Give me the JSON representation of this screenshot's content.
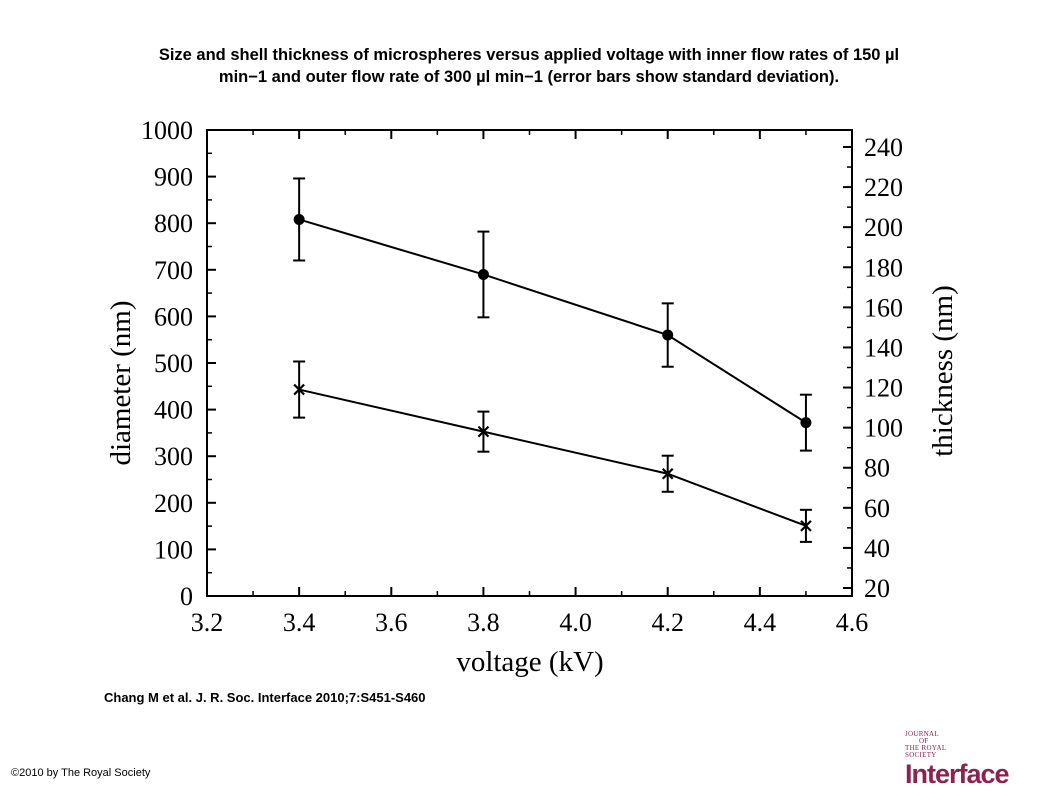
{
  "title": {
    "line1": "Size and shell thickness of microspheres versus applied voltage with inner flow rates of 150 µl",
    "line2": "min−1 and outer flow rate of 300 µl min−1 (error bars show standard deviation)."
  },
  "citation": "Chang M et al. J. R. Soc. Interface 2010;7:S451-S460",
  "copyright": "©2010 by The Royal Society",
  "logo": {
    "line1": "JOURNAL",
    "line2": "OF",
    "line3": "THE ROYAL",
    "line4": "SOCIETY",
    "wordmark": "Interface",
    "color": "#8b2252"
  },
  "chart_data": {
    "type": "line",
    "xlabel": "voltage (kV)",
    "ylabel": "diameter (nm)",
    "y2label": "thickness (nm)",
    "xlim": [
      3.2,
      4.6
    ],
    "ylim": [
      0,
      1000
    ],
    "y2lim": [
      20,
      250
    ],
    "x_ticks": [
      "3.2",
      "3.4",
      "3.6",
      "3.8",
      "4.0",
      "4.2",
      "4.4",
      "4.6"
    ],
    "y_ticks": [
      "0",
      "100",
      "200",
      "300",
      "400",
      "500",
      "600",
      "700",
      "800",
      "900",
      "1000"
    ],
    "y2_ticks": [
      "20",
      "40",
      "60",
      "80",
      "100",
      "120",
      "140",
      "160",
      "180",
      "200",
      "220",
      "240"
    ],
    "grid": false,
    "legend": "none",
    "series": [
      {
        "axis": "left",
        "marker": "circle",
        "x": [
          3.4,
          3.8,
          4.2,
          4.5
        ],
        "values": [
          808,
          690,
          560,
          372
        ],
        "error": [
          88,
          92,
          68,
          60
        ]
      },
      {
        "axis": "right",
        "marker": "cross",
        "x": [
          3.4,
          3.8,
          4.2,
          4.5
        ],
        "values": [
          119,
          98,
          77,
          51
        ],
        "error": [
          14,
          10,
          9,
          8
        ]
      }
    ]
  }
}
